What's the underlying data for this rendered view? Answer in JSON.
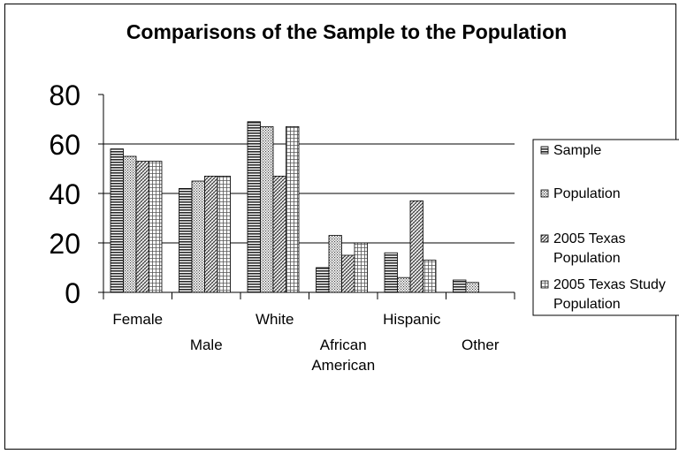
{
  "chart_data": {
    "type": "bar",
    "title": "Comparisons of the Sample to the Population",
    "xlabel": "",
    "ylabel": "",
    "ylim": [
      0,
      80
    ],
    "yticks": [
      0,
      20,
      40,
      60,
      80
    ],
    "grid": true,
    "legend_position": "right",
    "categories": [
      [
        "Female"
      ],
      [
        "Male"
      ],
      [
        "White"
      ],
      [
        "African",
        "American"
      ],
      [
        "Hispanic"
      ],
      [
        "Other"
      ]
    ],
    "series": [
      {
        "name": [
          "Sample"
        ],
        "values": [
          58,
          42,
          69,
          10,
          16,
          5
        ],
        "pattern": "p0"
      },
      {
        "name": [
          "Population"
        ],
        "values": [
          55,
          45,
          67,
          23,
          6,
          4
        ],
        "pattern": "p1"
      },
      {
        "name": [
          "2005 Texas",
          "Population"
        ],
        "values": [
          53,
          47,
          47,
          15,
          37,
          null
        ],
        "pattern": "p2"
      },
      {
        "name": [
          "2005 Texas Study",
          "Population"
        ],
        "values": [
          53,
          47,
          67,
          20,
          13,
          null
        ],
        "pattern": "p3"
      }
    ]
  }
}
